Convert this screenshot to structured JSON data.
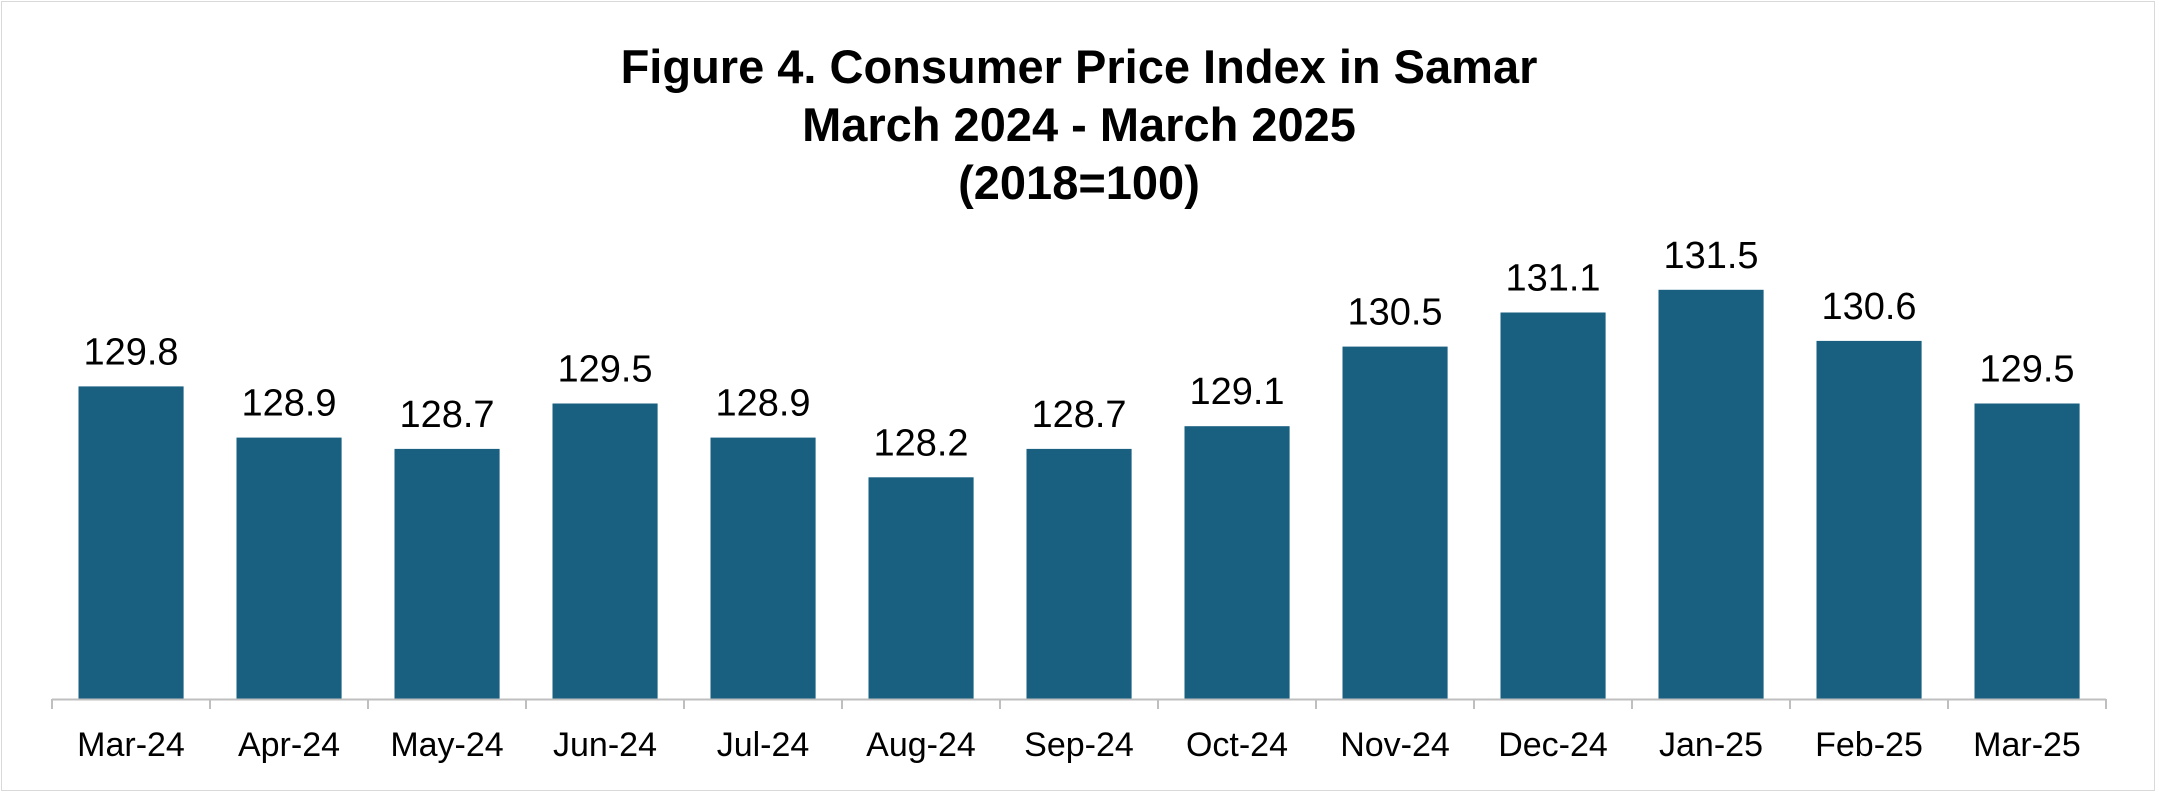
{
  "chart_data": {
    "type": "bar",
    "title": [
      "Figure 4. Consumer Price Index in Samar",
      "March 2024 - March 2025",
      "(2018=100)"
    ],
    "categories": [
      "Mar-24",
      "Apr-24",
      "May-24",
      "Jun-24",
      "Jul-24",
      "Aug-24",
      "Sep-24",
      "Oct-24",
      "Nov-24",
      "Dec-24",
      "Jan-25",
      "Feb-25",
      "Mar-25"
    ],
    "values": [
      129.8,
      128.9,
      128.7,
      129.5,
      128.9,
      128.2,
      128.7,
      129.1,
      130.5,
      131.1,
      131.5,
      130.6,
      129.5
    ],
    "data_labels": [
      "129.8",
      "128.9",
      "128.7",
      "129.5",
      "128.9",
      "128.2",
      "128.7",
      "129.1",
      "130.5",
      "131.1",
      "131.5",
      "130.6",
      "129.5"
    ],
    "xlabel": "",
    "ylabel": "",
    "ylim": [
      124.3,
      132.2
    ],
    "y_axis_visible": false,
    "grid": false,
    "legend": "none",
    "bar_color": "#185F80"
  }
}
